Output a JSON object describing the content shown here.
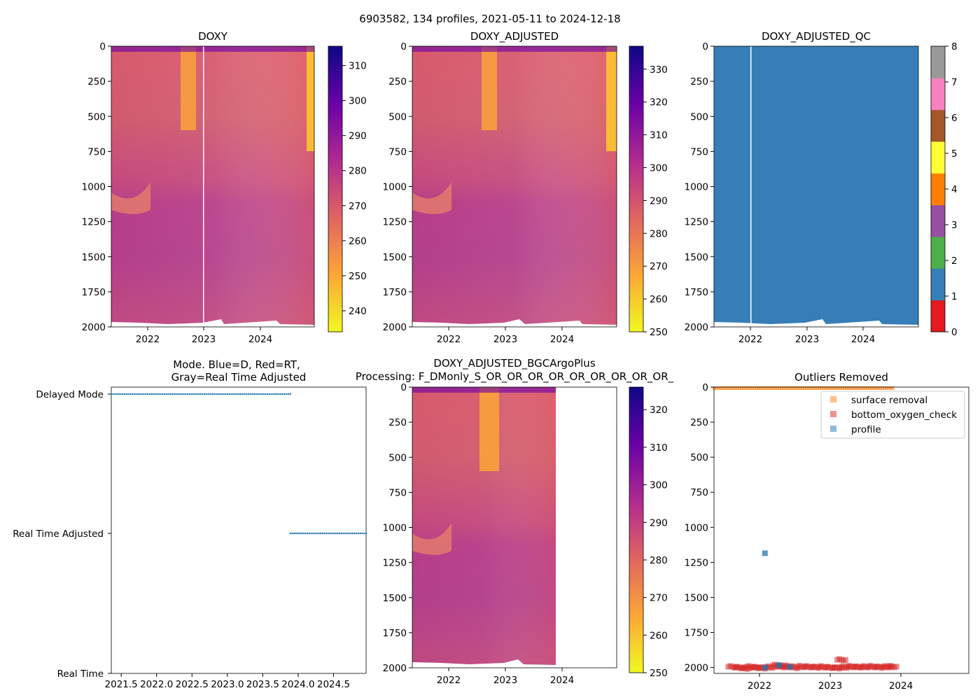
{
  "suptitle": "6903582, 134 profiles, 2021-05-11 to 2024-12-18",
  "colors": {
    "plasma": [
      "#f0f921",
      "#fca636",
      "#e16462",
      "#b12a90",
      "#6a00a8",
      "#0d0887"
    ],
    "qc_categories": [
      "#e41a1c",
      "#377eb8",
      "#4daf4a",
      "#984ea3",
      "#ff7f00",
      "#ffff33",
      "#a65628",
      "#f781bf",
      "#999999"
    ],
    "mode_points": "#1f77b4",
    "surface_removal": "#ff7f0e",
    "bottom_oxygen_check": "#d62728",
    "profile": "#1f77b4"
  },
  "chart_data": [
    {
      "id": "doxy",
      "type": "heatmap",
      "title": "DOXY",
      "y_ticks": [
        "0",
        "250",
        "500",
        "750",
        "1000",
        "1250",
        "1500",
        "1750",
        "2000"
      ],
      "y_range": [
        0,
        2000
      ],
      "x_ticks": [
        "2022",
        "2023",
        "2024"
      ],
      "colorbar": {
        "ticks": [
          "240",
          "250",
          "260",
          "270",
          "280",
          "290",
          "300",
          "310"
        ],
        "range": [
          234,
          315.5
        ]
      }
    },
    {
      "id": "doxy-adjusted",
      "type": "heatmap",
      "title": "DOXY_ADJUSTED",
      "y_ticks": [
        "0",
        "250",
        "500",
        "750",
        "1000",
        "1250",
        "1500",
        "1750",
        "2000"
      ],
      "y_range": [
        0,
        2000
      ],
      "x_ticks": [
        "2022",
        "2023",
        "2024"
      ],
      "colorbar": {
        "ticks": [
          "250",
          "260",
          "270",
          "280",
          "290",
          "300",
          "310",
          "320",
          "330"
        ],
        "range": [
          250,
          337
        ]
      }
    },
    {
      "id": "doxy-adjusted-qc",
      "type": "heatmap",
      "title": "DOXY_ADJUSTED_QC",
      "y_ticks": [
        "0",
        "250",
        "500",
        "750",
        "1000",
        "1250",
        "1500",
        "1750",
        "2000"
      ],
      "y_range": [
        0,
        2000
      ],
      "x_ticks": [
        "2022",
        "2023",
        "2024"
      ],
      "colorbar": {
        "ticks": [
          "0",
          "1",
          "2",
          "3",
          "4",
          "5",
          "6",
          "7",
          "8"
        ],
        "range": [
          0,
          8
        ]
      },
      "value": 1
    },
    {
      "id": "mode",
      "type": "scatter",
      "title_lines": [
        "Mode. Blue=D, Red=RT,",
        "Gray=Real Time Adjusted"
      ],
      "y_categories": [
        "Delayed Mode",
        "Real Time Adjusted",
        "Real Time"
      ],
      "x_ticks": [
        "2021.5",
        "2022.0",
        "2022.5",
        "2023.0",
        "2023.5",
        "2024.0",
        "2024.5"
      ],
      "x_range": [
        2021.36,
        2024.96
      ],
      "series": [
        {
          "name": "Delayed Mode",
          "x_start": 2021.36,
          "x_end": 2023.89
        },
        {
          "name": "Real Time Adjusted",
          "x_start": 2023.89,
          "x_end": 2024.96
        }
      ]
    },
    {
      "id": "doxy-adjusted-bgcargoplus",
      "type": "heatmap",
      "title_lines": [
        "DOXY_ADJUSTED_BGCArgoPlus",
        "Processing: F_DMonly_S_OR_OR_OR_OR_OR_OR_OR_OR_OR_"
      ],
      "y_ticks": [
        "0",
        "250",
        "500",
        "750",
        "1000",
        "1250",
        "1500",
        "1750",
        "2000"
      ],
      "y_range": [
        0,
        2000
      ],
      "x_ticks": [
        "2022",
        "2023",
        "2024"
      ],
      "colorbar": {
        "ticks": [
          "250",
          "260",
          "270",
          "280",
          "290",
          "300",
          "310",
          "320"
        ],
        "range": [
          250,
          326
        ]
      }
    },
    {
      "id": "outliers-removed",
      "type": "scatter",
      "title": "Outliers Removed",
      "y_ticks": [
        "0",
        "250",
        "500",
        "750",
        "1000",
        "1250",
        "1500",
        "1750",
        "2000"
      ],
      "y_range": [
        0,
        2000
      ],
      "x_ticks": [
        "2022",
        "2023",
        "2024"
      ],
      "legend": [
        "surface removal",
        "bottom_oxygen_check",
        "profile"
      ],
      "legend_position": "top-right",
      "series": [
        {
          "name": "surface removal",
          "x_range": [
            2021.36,
            2023.89
          ],
          "depth": 5
        },
        {
          "name": "bottom_oxygen_check",
          "points": [
            [
              2021.62,
              1995
            ],
            [
              2021.72,
              2000
            ],
            [
              2021.8,
              2005
            ],
            [
              2021.88,
              1995
            ],
            [
              2021.96,
              2000
            ],
            [
              2022.05,
              2003
            ],
            [
              2022.15,
              1997
            ],
            [
              2022.25,
              1985
            ],
            [
              2022.32,
              1995
            ],
            [
              2022.4,
              1990
            ],
            [
              2022.5,
              2000
            ],
            [
              2022.6,
              1993
            ],
            [
              2022.7,
              1995
            ],
            [
              2022.8,
              1998
            ],
            [
              2022.9,
              1995
            ],
            [
              2023.0,
              2000
            ],
            [
              2023.1,
              2002
            ],
            [
              2023.2,
              1998
            ],
            [
              2023.3,
              1993
            ],
            [
              2023.4,
              1997
            ],
            [
              2023.5,
              1995
            ],
            [
              2023.6,
              1993
            ],
            [
              2023.7,
              1998
            ],
            [
              2023.8,
              1995
            ],
            [
              2023.88,
              1993
            ],
            [
              2023.16,
              1945
            ]
          ]
        },
        {
          "name": "profile",
          "points": [
            [
              2022.08,
              1185
            ],
            [
              2022.08,
              2000
            ],
            [
              2022.28,
              1983
            ],
            [
              2022.43,
              1995
            ]
          ]
        }
      ]
    }
  ]
}
